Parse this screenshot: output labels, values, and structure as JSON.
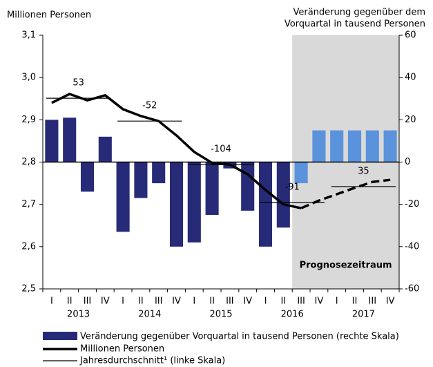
{
  "chart_data": {
    "type": "bar_line",
    "y_label": "Millionen Personen",
    "y2_label_lines": [
      "Veränderung gegenüber dem",
      "Vorquartal in tausend Personen"
    ],
    "categories": [
      "I",
      "II",
      "III",
      "IV",
      "I",
      "II",
      "III",
      "IV",
      "I",
      "II",
      "III",
      "IV",
      "I",
      "II",
      "III",
      "IV",
      "I",
      "II",
      "III",
      "IV"
    ],
    "years": [
      "2013",
      "2014",
      "2015",
      "2016",
      "2017"
    ],
    "ylim": [
      2.5,
      3.1
    ],
    "yticks": [
      {
        "value": 2.5,
        "label": "2,5"
      },
      {
        "value": 2.6,
        "label": "2,6"
      },
      {
        "value": 2.7,
        "label": "2,7"
      },
      {
        "value": 2.8,
        "label": "2,8"
      },
      {
        "value": 2.9,
        "label": "2,9"
      },
      {
        "value": 3.0,
        "label": "3,0"
      },
      {
        "value": 3.1,
        "label": "3,1"
      }
    ],
    "y2lim": [
      -60,
      60
    ],
    "y2ticks": [
      -60,
      -40,
      -20,
      0,
      20,
      40,
      60
    ],
    "series": [
      {
        "name": "Veränderung gegenüber Vorquartal in tausend Personen (rechte Skala)",
        "type": "bar",
        "axis": "y2",
        "color": "#272b77",
        "forecast_color": "#5b92dc",
        "values": [
          20,
          21,
          -14,
          12,
          -33,
          -17,
          -10,
          -40,
          -38,
          -25,
          -3,
          -23,
          -40,
          -31,
          -10,
          15,
          15,
          15,
          15,
          15
        ]
      },
      {
        "name": "Millionen Personen",
        "type": "line",
        "color": "#000000",
        "values": [
          2.94,
          2.961,
          2.946,
          2.958,
          2.925,
          2.909,
          2.897,
          2.863,
          2.824,
          2.798,
          2.794,
          2.771,
          2.734,
          2.7,
          2.691,
          2.709,
          2.724,
          2.739,
          2.753,
          2.758
        ]
      }
    ],
    "annual_average": {
      "name": "Jahresdurchschnitt¹ (linke Skala)",
      "values": [
        2.951,
        2.897,
        2.794,
        2.704,
        2.742
      ],
      "labels": [
        53,
        -52,
        -104,
        -91,
        35
      ]
    },
    "forecast": {
      "label": "Prognosezeitraum",
      "from_index": 14,
      "color": "#d9d9d9"
    }
  }
}
